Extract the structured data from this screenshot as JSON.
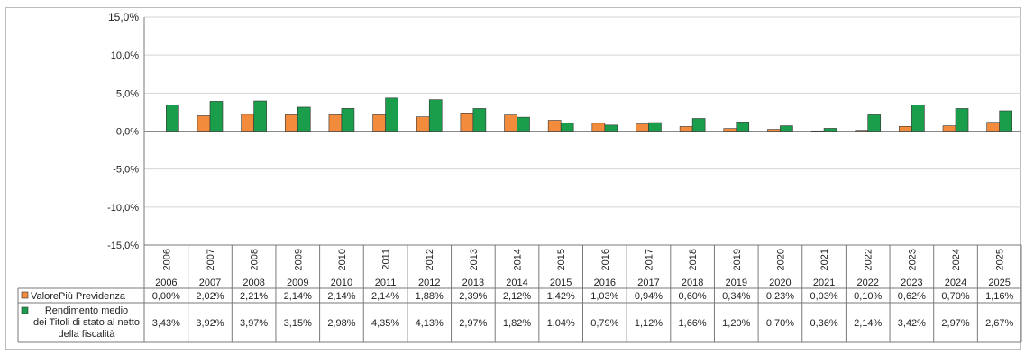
{
  "chart_data": {
    "type": "bar",
    "categories": [
      "2006",
      "2007",
      "2008",
      "2009",
      "2010",
      "2011",
      "2012",
      "2013",
      "2014",
      "2015",
      "2016",
      "2017",
      "2018",
      "2019",
      "2020",
      "2021",
      "2022",
      "2023",
      "2024",
      "2025"
    ],
    "series": [
      {
        "name": "ValorePiù Previdenza",
        "color": "#f28c3c",
        "values": [
          0.0,
          2.02,
          2.21,
          2.14,
          2.14,
          2.14,
          1.88,
          2.39,
          2.12,
          1.42,
          1.03,
          0.94,
          0.6,
          0.34,
          0.23,
          0.03,
          0.1,
          0.62,
          0.7,
          1.16
        ],
        "labels": [
          "0,00%",
          "2,02%",
          "2,21%",
          "2,14%",
          "2,14%",
          "2,14%",
          "1,88%",
          "2,39%",
          "2,12%",
          "1,42%",
          "1,03%",
          "0,94%",
          "0,60%",
          "0,34%",
          "0,23%",
          "0,03%",
          "0,10%",
          "0,62%",
          "0,70%",
          "1,16%"
        ]
      },
      {
        "name": "Rendimento medio dei Titoli di stato al netto della fiscalità",
        "name_lines": [
          "Rendimento medio",
          "dei Titoli di stato al netto",
          "della fiscalità"
        ],
        "color": "#1a9e4b",
        "values": [
          3.43,
          3.92,
          3.97,
          3.15,
          2.98,
          4.35,
          4.13,
          2.97,
          1.82,
          1.04,
          0.79,
          1.12,
          1.66,
          1.2,
          0.7,
          0.36,
          2.14,
          3.42,
          2.97,
          2.67
        ],
        "labels": [
          "3,43%",
          "3,92%",
          "3,97%",
          "3,15%",
          "2,98%",
          "4,35%",
          "4,13%",
          "2,97%",
          "1,82%",
          "1,04%",
          "0,79%",
          "1,12%",
          "1,66%",
          "1,20%",
          "0,70%",
          "0,36%",
          "2,14%",
          "3,42%",
          "2,97%",
          "2,67%"
        ]
      }
    ],
    "ylim": [
      -15,
      15
    ],
    "yticks": [
      15,
      10,
      5,
      0,
      -5,
      -10,
      -15
    ],
    "ytick_labels": [
      "15,0%",
      "10,0%",
      "5,0%",
      "0,0%",
      "-5,0%",
      "-10,0%",
      "-15,0%"
    ],
    "grid": true,
    "legend": "data-table",
    "title": "",
    "xlabel": "",
    "ylabel": ""
  }
}
